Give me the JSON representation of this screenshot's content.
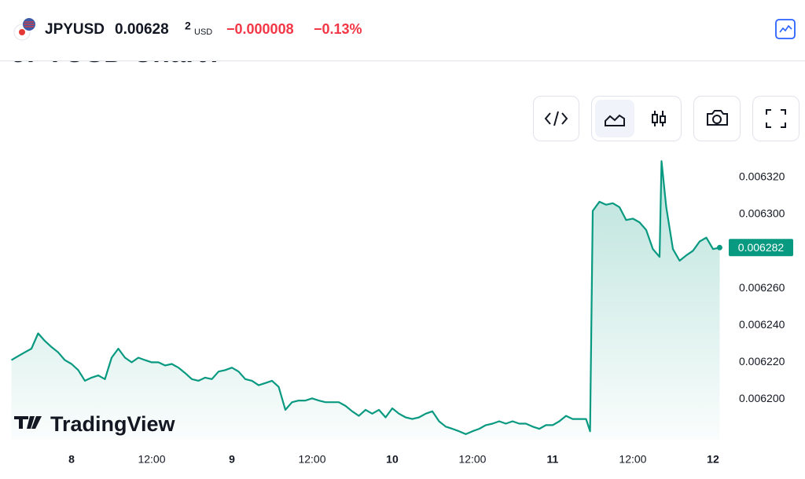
{
  "header": {
    "symbol": "JPYUSD",
    "price": "0.00628",
    "price_last_digit": "2",
    "currency": "USD",
    "change": "−0.000008",
    "change_percent": "−0.13%"
  },
  "page_heading": "JPYUSD Chart?",
  "watermark": "TradingView",
  "chart_data": {
    "type": "area",
    "color": "#089981",
    "x": [
      -9,
      -8,
      -7,
      -6,
      -5,
      -4,
      -3,
      -2,
      -1,
      0,
      1,
      2,
      3,
      4,
      5,
      6,
      7,
      8,
      9,
      10,
      11,
      12,
      13,
      14,
      15,
      16,
      17,
      18,
      19,
      20,
      21,
      22,
      23,
      24,
      25,
      26,
      27,
      28,
      29,
      30,
      31,
      32,
      33,
      34,
      35,
      36,
      37,
      38,
      39,
      40,
      41,
      42,
      43,
      44,
      45,
      46,
      47,
      48,
      49,
      50,
      51,
      52,
      53,
      54,
      55,
      56,
      57,
      58,
      59,
      60,
      61,
      62,
      63,
      64,
      65,
      66,
      67,
      68,
      69,
      70,
      71,
      72,
      73,
      74,
      75,
      76,
      77,
      77.6,
      78,
      79,
      80,
      81,
      82,
      83,
      84,
      85,
      86,
      87,
      88,
      88.3,
      89,
      90,
      91,
      92,
      93,
      94,
      95,
      96,
      97
    ],
    "values": [
      0.0062211,
      0.0062232,
      0.0062253,
      0.0062273,
      0.0062356,
      0.0062315,
      0.0062282,
      0.0062253,
      0.0062211,
      0.006219,
      0.0062157,
      0.0062099,
      0.0062116,
      0.0062128,
      0.0062108,
      0.0062224,
      0.0062273,
      0.0062224,
      0.0062199,
      0.0062224,
      0.0062211,
      0.0062199,
      0.0062199,
      0.0062182,
      0.006219,
      0.006217,
      0.0062141,
      0.0062108,
      0.0062099,
      0.0062116,
      0.0062108,
      0.0062149,
      0.0062157,
      0.006217,
      0.0062149,
      0.0062108,
      0.0062099,
      0.0062075,
      0.0062087,
      0.0062099,
      0.0062066,
      0.0061942,
      0.0061983,
      0.0061992,
      0.0061992,
      0.0062004,
      0.0061992,
      0.0061983,
      0.0061983,
      0.0061983,
      0.0061963,
      0.0061934,
      0.0061909,
      0.0061942,
      0.0061921,
      0.0061942,
      0.0061901,
      0.006195,
      0.0061921,
      0.0061901,
      0.0061892,
      0.0061901,
      0.0061921,
      0.0061934,
      0.006188,
      0.0061851,
      0.0061839,
      0.0061826,
      0.006181,
      0.0061826,
      0.0061839,
      0.0061859,
      0.0061867,
      0.006188,
      0.0061867,
      0.006188,
      0.0061867,
      0.0061867,
      0.0061851,
      0.0061839,
      0.0061859,
      0.0061859,
      0.006188,
      0.0061909,
      0.0061892,
      0.0061892,
      0.0061892,
      0.0061826,
      0.0063019,
      0.0063068,
      0.0063052,
      0.006306,
      0.0063039,
      0.0062969,
      0.0062977,
      0.0062957,
      0.0062915,
      0.0062812,
      0.006277,
      0.0063288,
      0.0063039,
      0.0062812,
      0.0062749,
      0.0062778,
      0.0062803,
      0.0062853,
      0.0062874,
      0.0062812,
      0.006282
    ],
    "xlim": [
      -9,
      97.3
    ],
    "xticks": [
      {
        "value": 0,
        "label": "8"
      },
      {
        "value": 12,
        "label": "12:00"
      },
      {
        "value": 24,
        "label": "9"
      },
      {
        "value": 36,
        "label": "12:00"
      },
      {
        "value": 48,
        "label": "10"
      },
      {
        "value": 60,
        "label": "12:00"
      },
      {
        "value": 72,
        "label": "11"
      },
      {
        "value": 84,
        "label": "12:00"
      },
      {
        "value": 96,
        "label": "12"
      }
    ],
    "ylim": [
      0.006178,
      0.006331
    ],
    "yticks": [
      {
        "value": 0.0062,
        "label": "0.006200"
      },
      {
        "value": 0.00622,
        "label": "0.006220"
      },
      {
        "value": 0.00624,
        "label": "0.006240"
      },
      {
        "value": 0.00626,
        "label": "0.006260"
      },
      {
        "value": 0.0063,
        "label": "0.006300"
      },
      {
        "value": 0.00632,
        "label": "0.006320"
      }
    ],
    "current_price": {
      "value": 0.006282,
      "label": "0.006282"
    }
  }
}
